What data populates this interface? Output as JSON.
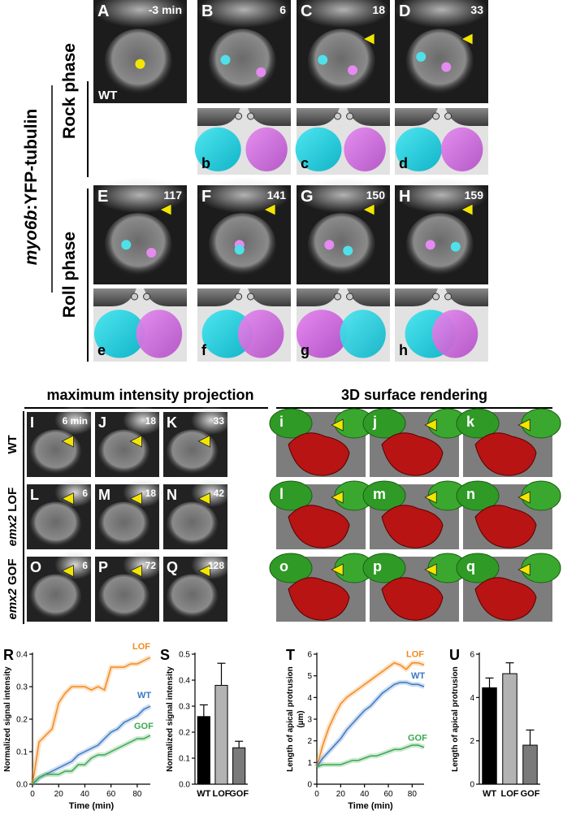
{
  "side_label": {
    "gene": "myo6b",
    "construct": ":YFP-tubulin"
  },
  "phases": [
    "Rock phase",
    "Roll phase"
  ],
  "wt_label": "WT",
  "live_panels": [
    {
      "letter": "A",
      "time": "-3 min"
    },
    {
      "letter": "B",
      "time": "6"
    },
    {
      "letter": "C",
      "time": "18"
    },
    {
      "letter": "D",
      "time": "33"
    },
    {
      "letter": "E",
      "time": "117"
    },
    {
      "letter": "F",
      "time": "141"
    },
    {
      "letter": "G",
      "time": "150"
    },
    {
      "letter": "H",
      "time": "159"
    }
  ],
  "schematic_panels": [
    "b",
    "c",
    "d",
    "e",
    "f",
    "g",
    "h"
  ],
  "sections": [
    "maximum intensity projection",
    "3D surface rendering"
  ],
  "rows": [
    {
      "label": "WT"
    },
    {
      "gene": "emx2",
      "label": "LOF"
    },
    {
      "gene": "emx2",
      "label": "GOF"
    }
  ],
  "mip_panels": [
    {
      "letter": "I",
      "time": "6 min"
    },
    {
      "letter": "J",
      "time": "18"
    },
    {
      "letter": "K",
      "time": "33"
    },
    {
      "letter": "L",
      "time": "6"
    },
    {
      "letter": "M",
      "time": "18"
    },
    {
      "letter": "N",
      "time": "42"
    },
    {
      "letter": "O",
      "time": "6"
    },
    {
      "letter": "P",
      "time": "72"
    },
    {
      "letter": "Q",
      "time": "128"
    }
  ],
  "render_panels": [
    "i",
    "j",
    "k",
    "l",
    "m",
    "n",
    "o",
    "p",
    "q"
  ],
  "chart_data": [
    {
      "type": "line",
      "panel": "R",
      "y_label": [
        "Normalized signal intensity"
      ],
      "x_label": "Time (min)",
      "x": [
        0,
        5,
        10,
        15,
        20,
        25,
        30,
        35,
        40,
        45,
        50,
        55,
        60,
        65,
        70,
        75,
        80,
        85,
        90
      ],
      "xlim": [
        0,
        90
      ],
      "xticks": [
        0,
        20,
        40,
        60,
        80
      ],
      "ylim": [
        0,
        0.4
      ],
      "yticks": [
        {
          "value": 0,
          "label": "0.0"
        },
        0.1,
        0.2,
        0.3,
        0.4
      ],
      "series": [
        {
          "name": "LOF",
          "color": "#f28a1e",
          "values": [
            0,
            0.13,
            0.15,
            0.17,
            0.25,
            0.28,
            0.3,
            0.3,
            0.3,
            0.29,
            0.3,
            0.29,
            0.36,
            0.36,
            0.36,
            0.37,
            0.37,
            0.38,
            0.39
          ]
        },
        {
          "name": "WT",
          "color": "#3b78c2",
          "values": [
            0,
            0.02,
            0.03,
            0.04,
            0.05,
            0.06,
            0.07,
            0.09,
            0.1,
            0.11,
            0.12,
            0.14,
            0.16,
            0.17,
            0.19,
            0.2,
            0.21,
            0.23,
            0.24
          ]
        },
        {
          "name": "GOF",
          "color": "#3aa84e",
          "values": [
            0,
            0.02,
            0.03,
            0.03,
            0.03,
            0.04,
            0.04,
            0.06,
            0.06,
            0.08,
            0.09,
            0.09,
            0.1,
            0.11,
            0.12,
            0.13,
            0.14,
            0.14,
            0.15
          ]
        }
      ]
    },
    {
      "type": "bar",
      "panel": "S",
      "y_label": [
        "Normalized signal intensity"
      ],
      "categories": [
        "WT",
        "LOF",
        "GOF"
      ],
      "values": [
        0.26,
        0.38,
        0.14
      ],
      "errors": [
        0.045,
        0.085,
        0.025
      ],
      "colors": [
        "#000000",
        "#b3b3b3",
        "#7a7a7a"
      ],
      "ylim": [
        0,
        0.5
      ],
      "yticks": [
        {
          "value": 0,
          "label": "0.0"
        },
        0.1,
        0.2,
        0.3,
        0.4,
        0.5
      ]
    },
    {
      "type": "line",
      "panel": "T",
      "y_label": [
        "Length of apical protrusion",
        "(µm)"
      ],
      "x_label": "Time (min)",
      "x": [
        0,
        5,
        10,
        15,
        20,
        25,
        30,
        35,
        40,
        45,
        50,
        55,
        60,
        65,
        70,
        75,
        80,
        85,
        90
      ],
      "xlim": [
        0,
        90
      ],
      "xticks": [
        0,
        20,
        40,
        60,
        80
      ],
      "ylim": [
        0,
        6
      ],
      "yticks": [
        0,
        1,
        2,
        3,
        4,
        5,
        6
      ],
      "series": [
        {
          "name": "LOF",
          "color": "#f28a1e",
          "values": [
            0.8,
            1.8,
            2.6,
            3.2,
            3.7,
            4.0,
            4.2,
            4.4,
            4.6,
            4.8,
            5.0,
            5.2,
            5.4,
            5.6,
            5.5,
            5.3,
            5.6,
            5.6,
            5.5
          ]
        },
        {
          "name": "WT",
          "color": "#3b78c2",
          "values": [
            0.8,
            1.2,
            1.5,
            1.8,
            2.1,
            2.5,
            2.8,
            3.1,
            3.4,
            3.6,
            3.9,
            4.2,
            4.4,
            4.6,
            4.7,
            4.7,
            4.6,
            4.6,
            4.5
          ]
        },
        {
          "name": "GOF",
          "color": "#3aa84e",
          "values": [
            0.8,
            0.9,
            0.9,
            0.9,
            0.9,
            1.0,
            1.1,
            1.1,
            1.2,
            1.3,
            1.3,
            1.4,
            1.5,
            1.6,
            1.6,
            1.7,
            1.8,
            1.8,
            1.7
          ]
        }
      ]
    },
    {
      "type": "bar",
      "panel": "U",
      "y_label": [
        "Length of apical protrusion"
      ],
      "categories": [
        "WT",
        "LOF",
        "GOF"
      ],
      "values": [
        4.45,
        5.1,
        1.8
      ],
      "errors": [
        0.45,
        0.5,
        0.7
      ],
      "colors": [
        "#000000",
        "#b3b3b3",
        "#7a7a7a"
      ],
      "ylim": [
        0,
        6
      ],
      "yticks": [
        0,
        2,
        4,
        6
      ]
    }
  ]
}
